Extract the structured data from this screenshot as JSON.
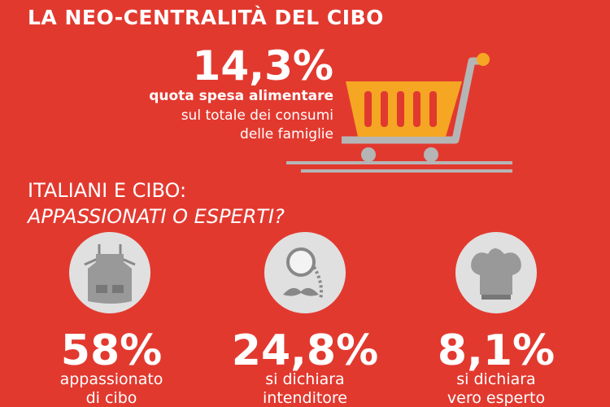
{
  "header": {
    "title": "LA NEO-CENTRALITÀ DEL CIBO"
  },
  "highlight": {
    "value": "14,3%",
    "lines": [
      "quota spesa alimentare",
      "sul totale dei consumi",
      "delle famiglie"
    ]
  },
  "section": {
    "title": "ITALIANI E CIBO:",
    "subtitle": "APPASSIONATI O ESPERTI?"
  },
  "stats": [
    {
      "value": "58%",
      "lines": [
        "appassionato",
        "di cibo"
      ]
    },
    {
      "value": "24,8%",
      "lines": [
        "si dichiara",
        "intenditore"
      ]
    },
    {
      "value": "8,1%",
      "lines": [
        "si dichiara",
        "vero esperto"
      ]
    }
  ]
}
